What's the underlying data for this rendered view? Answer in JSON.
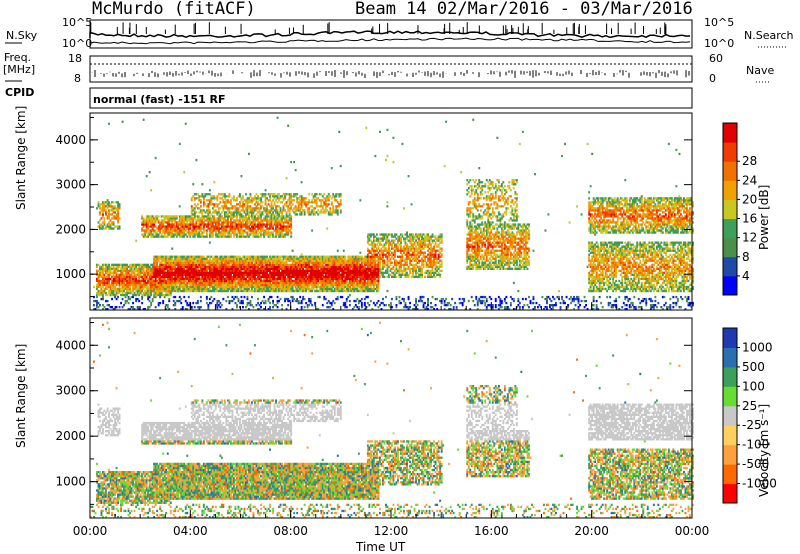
{
  "header": {
    "station": "McMurdo (fitACF)",
    "beam_date": "Beam 14  02/Mar/2016 - 03/Mar/2016"
  },
  "top_panels": {
    "nsky_label": "N.Sky",
    "nsky_ticks": [
      "10^5",
      "10^0"
    ],
    "nsearch_label": "N.Search",
    "nsearch_ticks": [
      "10^5",
      "10^0"
    ],
    "freq_label_1": "Freq.",
    "freq_label_2": "[MHz]",
    "freq_ticks": [
      "18",
      "8"
    ],
    "nave_label": "Nave",
    "nave_ticks": [
      "60",
      "0"
    ],
    "cpid_label": "CPID",
    "cpid_text": "normal (fast) -151 RF"
  },
  "colors": {
    "power": [
      "#0000ff",
      "#1f4aa8",
      "#4a8f4a",
      "#3aa05a",
      "#c8c820",
      "#f0a000",
      "#f07000",
      "#f03c00",
      "#e00000"
    ],
    "velocity": [
      "#ff0000",
      "#ff6a00",
      "#ffa040",
      "#ffd060",
      "#c8c8c8",
      "#66dd33",
      "#3aa05a",
      "#2a70b0",
      "#1f3ab0"
    ]
  },
  "chart_data": [
    {
      "type": "heatmap",
      "name": "power",
      "ylabel": "Slant Range [km]",
      "xlabel": "Time UT",
      "x_ticks": [
        "00:00",
        "04:00",
        "08:00",
        "12:00",
        "16:00",
        "20:00",
        "00:00"
      ],
      "y_ticks": [
        "1000",
        "2000",
        "3000",
        "4000"
      ],
      "ylim": [
        200,
        4600
      ],
      "xlim": [
        0,
        24
      ],
      "colorbar_label": "Power [dB]",
      "colorbar_ticks": [
        "4",
        "8",
        "12",
        "16",
        "20",
        "24",
        "28"
      ],
      "colorbar_range": [
        0,
        32
      ]
    },
    {
      "type": "heatmap",
      "name": "velocity",
      "ylabel": "Slant Range [km]",
      "xlabel": "Time UT",
      "x_ticks": [
        "00:00",
        "04:00",
        "08:00",
        "12:00",
        "16:00",
        "20:00",
        "00:00"
      ],
      "y_ticks": [
        "1000",
        "2000",
        "3000",
        "4000"
      ],
      "ylim": [
        200,
        4600
      ],
      "xlim": [
        0,
        24
      ],
      "colorbar_label": "Velocity [m s⁻¹]",
      "colorbar_ticks": [
        "1000",
        "500",
        "100",
        "25",
        "-25",
        "-100",
        "-500",
        "-1000"
      ]
    }
  ]
}
